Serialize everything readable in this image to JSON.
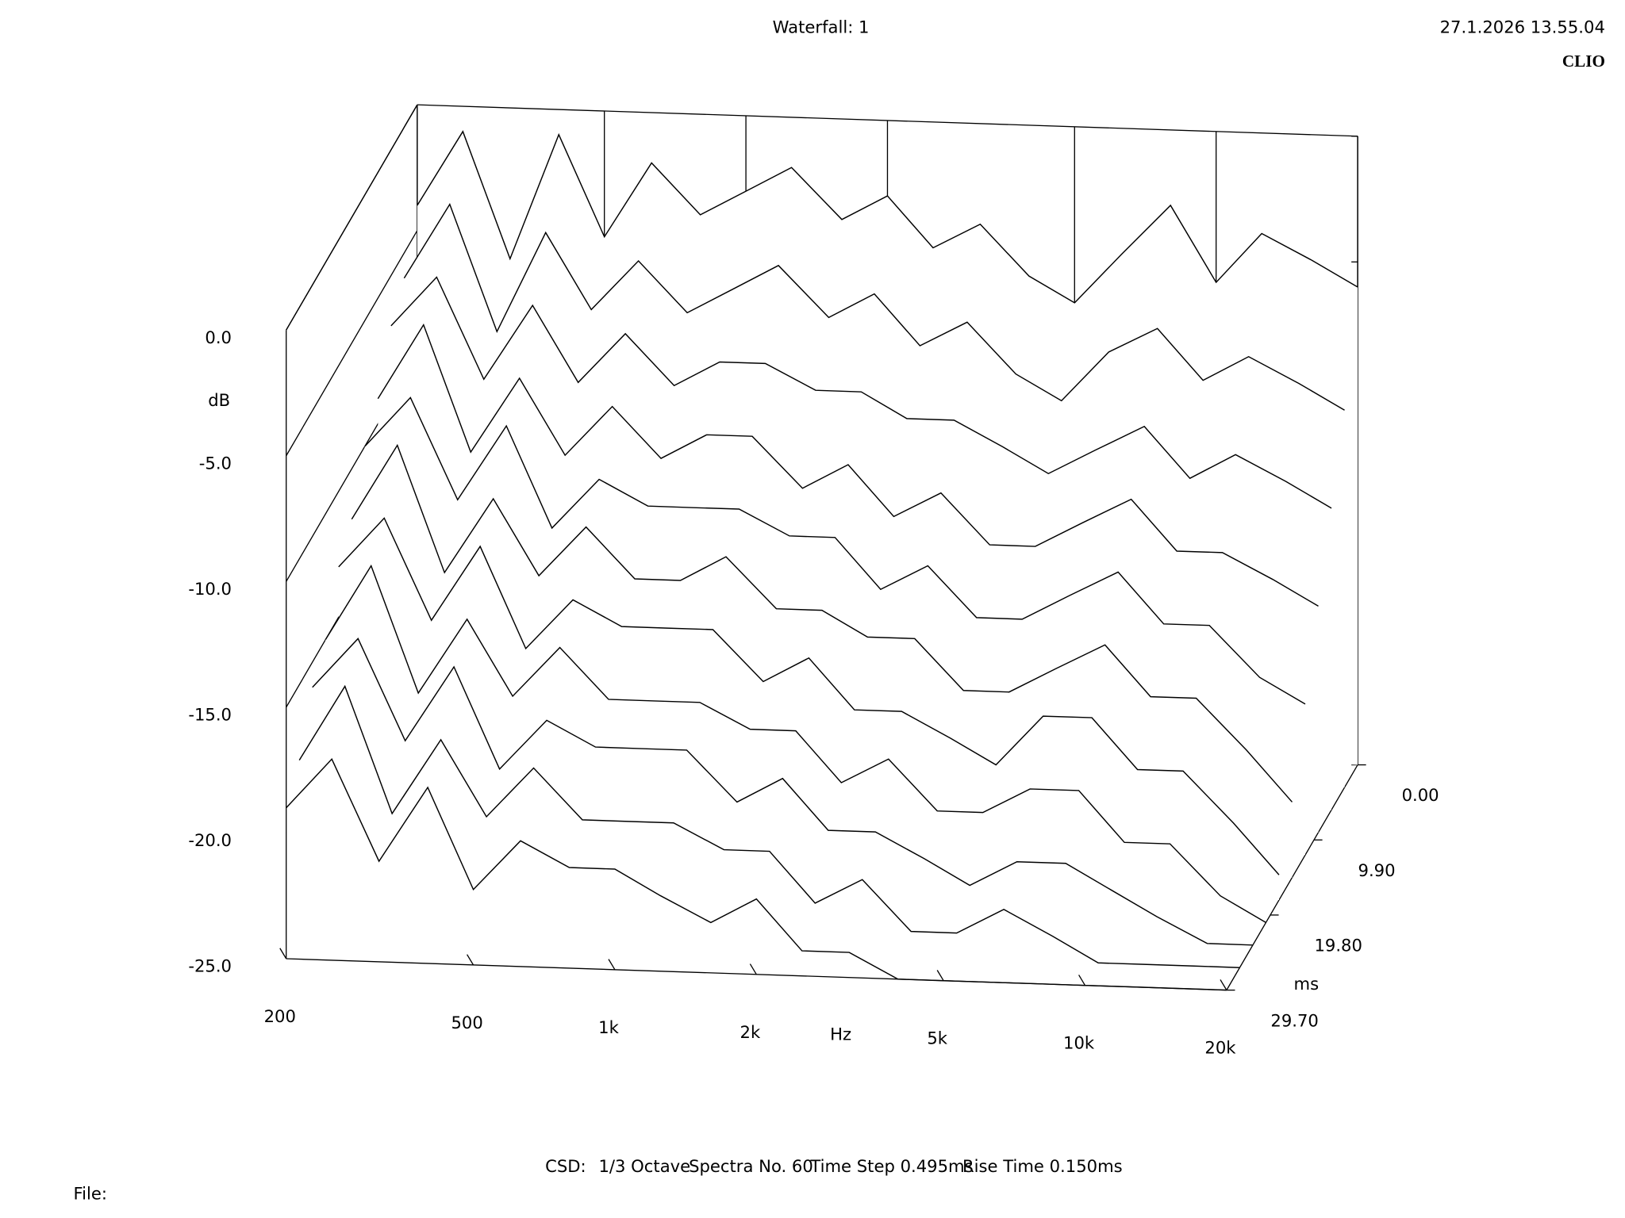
{
  "title": "Waterfall: 1",
  "timestamp": "27.1.2026 13.55.04",
  "brand": "CLIO",
  "footer": [
    "CSD:",
    "1/3 Octave",
    "Spectra No. 60",
    "Time Step 0.495ms",
    "Rise Time 0.150ms"
  ],
  "file_label": "File:",
  "chart_data": {
    "type": "waterfall",
    "xlabel": "Hz",
    "ylabel": "dB",
    "zlabel": "ms",
    "xscale": "log",
    "xlim": [
      200,
      20000
    ],
    "xticks": [
      200,
      500,
      {
        "value": 1000,
        "label": "1k"
      },
      {
        "value": 2000,
        "label": "2k"
      },
      {
        "value": 5000,
        "label": "5k"
      },
      {
        "value": 10000,
        "label": "10k"
      },
      {
        "value": 20000,
        "label": "20k"
      }
    ],
    "ylim": [
      -25,
      0
    ],
    "yticks": [
      {
        "value": 0,
        "label": "0.0"
      },
      {
        "value": -5,
        "label": "-5.0"
      },
      {
        "value": -10,
        "label": "-10.0"
      },
      {
        "value": -15,
        "label": "-15.0"
      },
      {
        "value": -20,
        "label": "-20.0"
      },
      {
        "value": -25,
        "label": "-25.0"
      }
    ],
    "zlim": [
      0,
      29.7
    ],
    "zticks": [
      {
        "value": 0,
        "label": "0.00"
      },
      {
        "value": 9.9,
        "label": "9.90"
      },
      {
        "value": 19.8,
        "label": "19.80"
      },
      {
        "value": 29.7,
        "label": "29.70"
      }
    ],
    "color": "#000000",
    "x": [
      200,
      250,
      315,
      400,
      500,
      630,
      800,
      1000,
      1250,
      1600,
      2000,
      2500,
      3150,
      4000,
      5000,
      6300,
      8000,
      10000,
      12500,
      16000,
      20000
    ],
    "series": [
      {
        "time": 0,
        "values": [
          -4,
          -1,
          -6,
          -1,
          -5,
          -2,
          -4,
          -3,
          -2,
          -4,
          -3,
          -5,
          -4,
          -6,
          -7,
          -5,
          -3,
          -6,
          -4,
          -5,
          -6
        ]
      },
      {
        "time": 2.97,
        "values": [
          -6,
          -3,
          -8,
          -4,
          -7,
          -5,
          -7,
          -6,
          -5,
          -7,
          -6,
          -8,
          -7,
          -9,
          -10,
          -8,
          -7,
          -9,
          -8,
          -9,
          -10
        ]
      },
      {
        "time": 5.94,
        "values": [
          -7,
          -5,
          -9,
          -6,
          -9,
          -7,
          -9,
          -8,
          -8,
          -9,
          -9,
          -10,
          -10,
          -11,
          -12,
          -11,
          -10,
          -12,
          -11,
          -12,
          -13
        ]
      },
      {
        "time": 8.91,
        "values": [
          -9,
          -6,
          -11,
          -8,
          -11,
          -9,
          -11,
          -10,
          -10,
          -12,
          -11,
          -13,
          -12,
          -14,
          -14,
          -13,
          -12,
          -14,
          -14,
          -15,
          -16
        ]
      },
      {
        "time": 11.88,
        "values": [
          -10,
          -8,
          -12,
          -9,
          -13,
          -11,
          -12,
          -12,
          -12,
          -13,
          -13,
          -15,
          -14,
          -16,
          -16,
          -15,
          -14,
          -16,
          -16,
          -18,
          -19
        ]
      },
      {
        "time": 14.85,
        "values": [
          -12,
          -9,
          -14,
          -11,
          -14,
          -12,
          -14,
          -14,
          -13,
          -15,
          -15,
          -16,
          -16,
          -18,
          -18,
          -17,
          -16,
          -18,
          -18,
          -20,
          -22
        ]
      },
      {
        "time": 17.82,
        "values": [
          -13,
          -11,
          -15,
          -12,
          -16,
          -14,
          -15,
          -15,
          -15,
          -17,
          -16,
          -18,
          -18,
          -19,
          -20,
          -18,
          -18,
          -20,
          -20,
          -22,
          -24
        ]
      },
      {
        "time": 20.79,
        "values": [
          -15,
          -12,
          -17,
          -14,
          -17,
          -15,
          -17,
          -17,
          -17,
          -18,
          -18,
          -20,
          -19,
          -21,
          -21,
          -20,
          -20,
          -22,
          -22,
          -24,
          -25
        ]
      },
      {
        "time": 23.76,
        "values": [
          -16,
          -14,
          -18,
          -15,
          -19,
          -17,
          -18,
          -18,
          -18,
          -20,
          -19,
          -21,
          -21,
          -22,
          -23,
          -22,
          -22,
          -23,
          -24,
          -25,
          -25
        ]
      },
      {
        "time": 26.73,
        "values": [
          -18,
          -15,
          -20,
          -17,
          -20,
          -18,
          -20,
          -20,
          -20,
          -21,
          -21,
          -23,
          -22,
          -24,
          -24,
          -23,
          -24,
          -25,
          -25,
          -25,
          -25
        ]
      },
      {
        "time": 29.7,
        "values": [
          -19,
          -17,
          -21,
          -18,
          -22,
          -20,
          -21,
          -21,
          -22,
          -23,
          -22,
          -24,
          -24,
          -25,
          -25,
          -25,
          -25,
          -25,
          -25,
          -25,
          -25
        ]
      }
    ]
  }
}
